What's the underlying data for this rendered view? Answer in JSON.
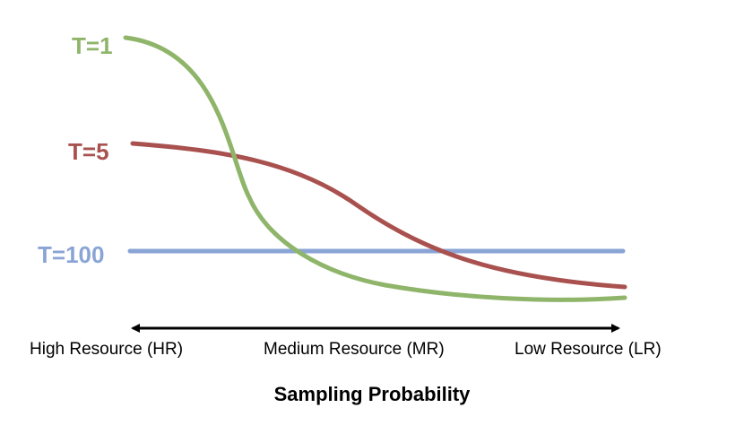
{
  "curves": [
    {
      "label": "T=1",
      "color": "#8fb56a"
    },
    {
      "label": "T=5",
      "color": "#a9514e"
    },
    {
      "label": "T=100",
      "color": "#8aa4d6"
    }
  ],
  "axis": {
    "left_label": "High Resource (HR)",
    "middle_label": "Medium Resource (MR)",
    "right_label": "Low Resource (LR)",
    "title": "Sampling Probability"
  }
}
